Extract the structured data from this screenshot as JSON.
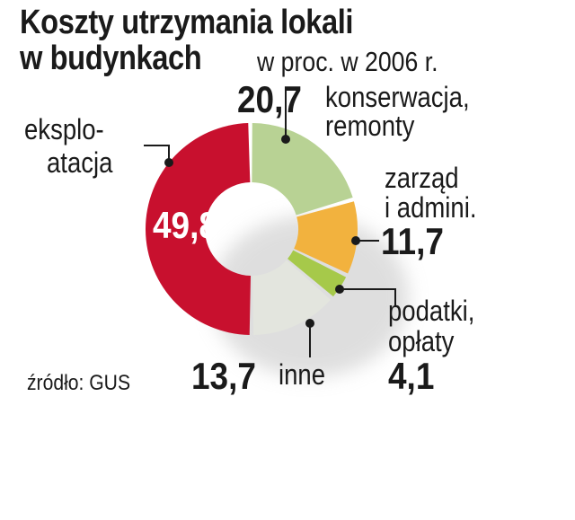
{
  "title_line1": "Koszty utrzymania lokali",
  "title_line2": "w budynkach",
  "subtitle": "w proc. w 2006 r.",
  "source": "źródło: GUS",
  "colors": {
    "red": "#c8102e",
    "green": "#b8d294",
    "orange": "#f2b23e",
    "lime": "#a6c94a",
    "grey": "#e3e5de"
  },
  "chart_data": {
    "type": "pie",
    "donut": true,
    "categories": [
      "eksplo-atacja",
      "konserwacja, remonty",
      "zarząd i admini.",
      "podatki, opłaty",
      "inne"
    ],
    "values": [
      49.8,
      20.7,
      11.7,
      4.1,
      13.7
    ],
    "value_labels": [
      "49,8",
      "20,7",
      "11,7",
      "4,1",
      "13,7"
    ],
    "label_lines": {
      "eksploatacja": [
        "eksplo-",
        "atacja"
      ],
      "konserwacja": [
        "konserwacja,",
        "remonty"
      ],
      "zarzad": [
        "zarząd",
        "i admini."
      ],
      "podatki": [
        "podatki,",
        "opłaty"
      ],
      "inne": [
        "inne"
      ]
    }
  }
}
